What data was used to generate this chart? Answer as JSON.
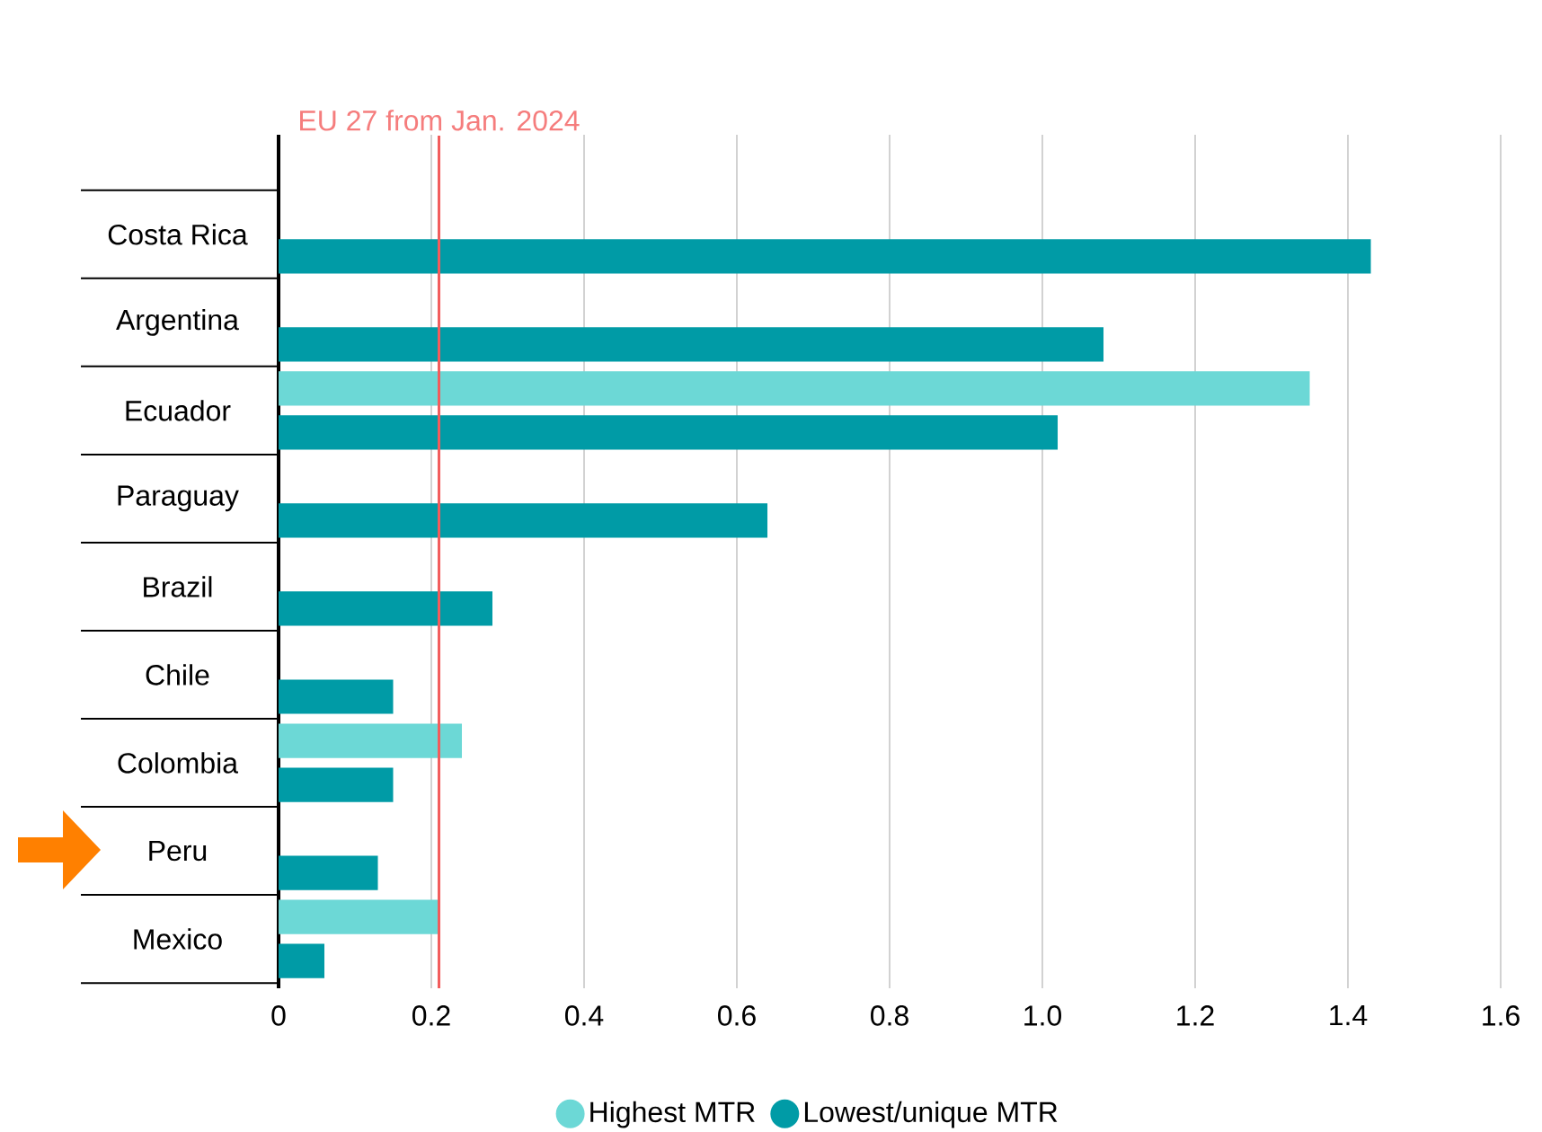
{
  "chart_data": {
    "type": "bar",
    "orientation": "horizontal",
    "categories": [
      "Costa Rica",
      "Argentina",
      "Ecuador",
      "Paraguay",
      "Brazil",
      "Chile",
      "Colombia",
      "Peru",
      "Mexico"
    ],
    "series": [
      {
        "name": "Highest MTR",
        "color": "#6cd8d6",
        "values": [
          null,
          null,
          1.35,
          null,
          null,
          null,
          0.24,
          null,
          0.21
        ]
      },
      {
        "name": "Lowest/unique MTR",
        "color": "#009ba6",
        "values": [
          1.43,
          1.08,
          1.02,
          0.64,
          0.28,
          0.15,
          0.15,
          0.13,
          0.06
        ]
      }
    ],
    "xlim": [
      0,
      1.6
    ],
    "xticks": [
      0,
      0.2,
      0.4,
      0.6,
      0.8,
      {
        "value": 1,
        "label": "1.0"
      },
      1.2,
      1.4,
      1.6
    ],
    "grid": "x",
    "legend": "bottom",
    "ref_lines": [
      {
        "axis": "x",
        "value": 0.21,
        "label": "EU 27 from Jan. 2024",
        "color": "#f25c5c"
      }
    ]
  }
}
